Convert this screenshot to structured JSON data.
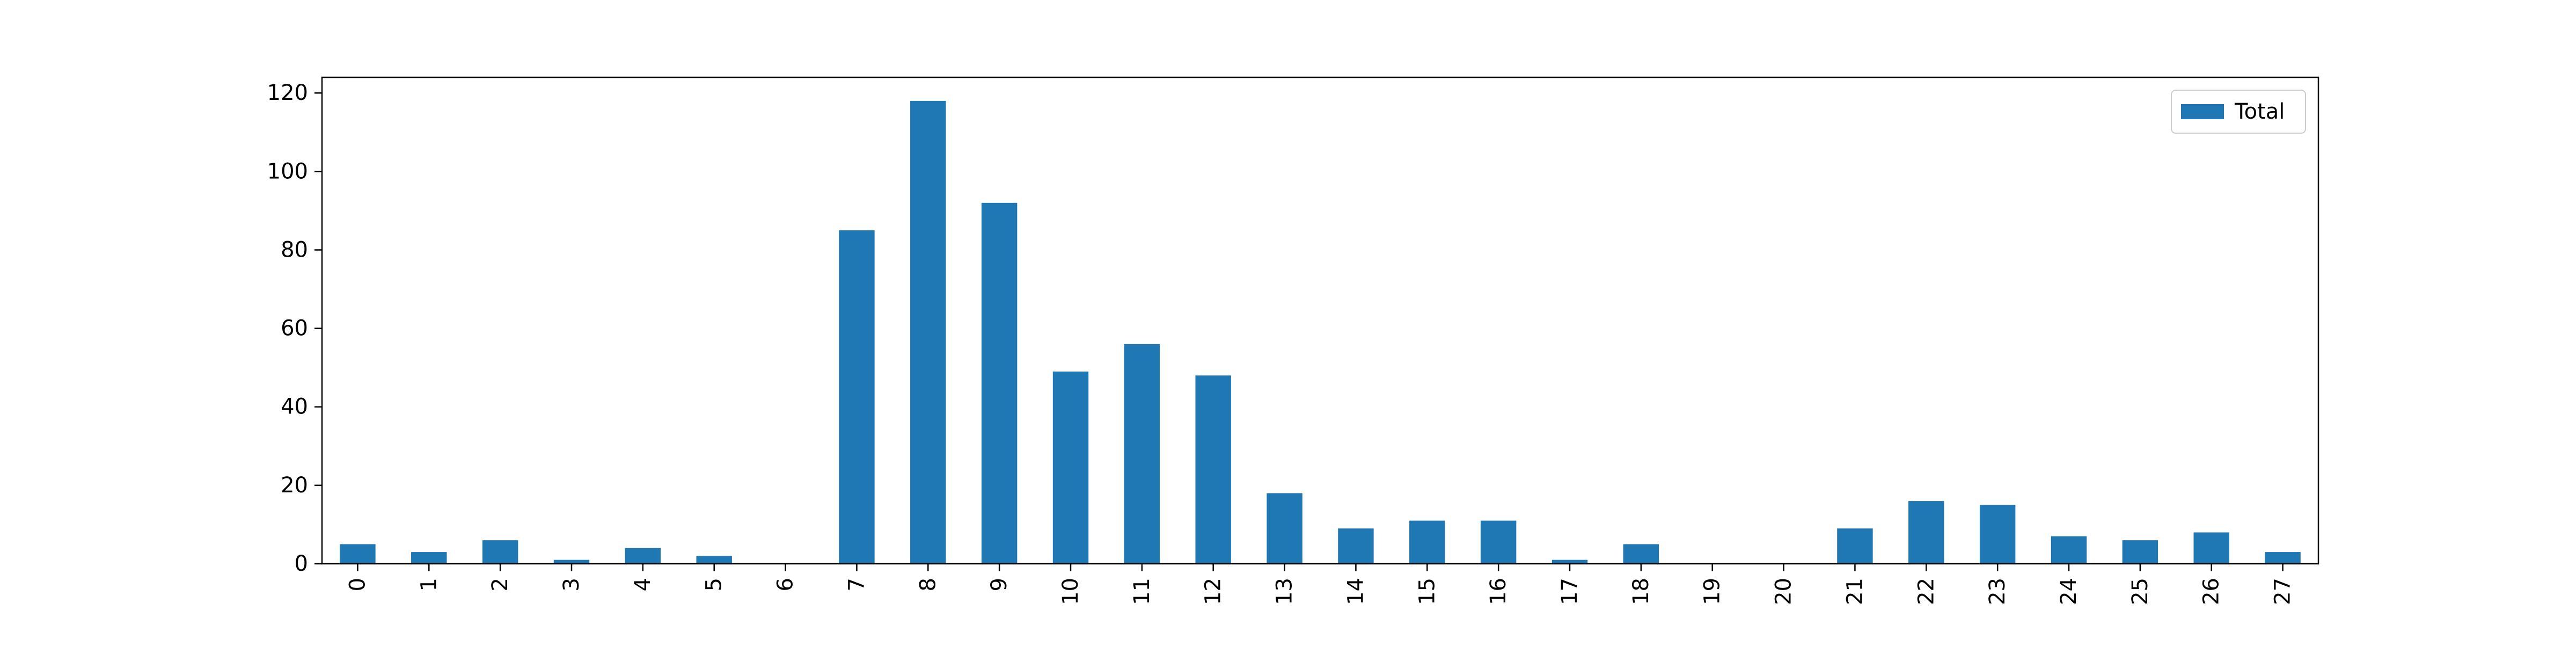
{
  "chart_data": {
    "type": "bar",
    "categories": [
      "0",
      "1",
      "2",
      "3",
      "4",
      "5",
      "6",
      "7",
      "8",
      "9",
      "10",
      "11",
      "12",
      "13",
      "14",
      "15",
      "16",
      "17",
      "18",
      "19",
      "20",
      "21",
      "22",
      "23",
      "24",
      "25",
      "26",
      "27"
    ],
    "series": [
      {
        "name": "Total",
        "values": [
          5,
          3,
          6,
          1,
          4,
          2,
          0,
          85,
          118,
          92,
          49,
          56,
          48,
          18,
          9,
          11,
          11,
          1,
          5,
          0,
          0,
          9,
          16,
          15,
          7,
          6,
          8,
          3
        ],
        "color": "#1f77b4"
      }
    ],
    "title": "",
    "xlabel": "",
    "ylabel": "",
    "ylim": [
      0,
      124
    ],
    "yticks": [
      0,
      20,
      40,
      60,
      80,
      100,
      120
    ],
    "xtick_rotation": "vertical",
    "grid": false,
    "legend": {
      "position": "top-right",
      "entries": [
        "Total"
      ]
    }
  }
}
